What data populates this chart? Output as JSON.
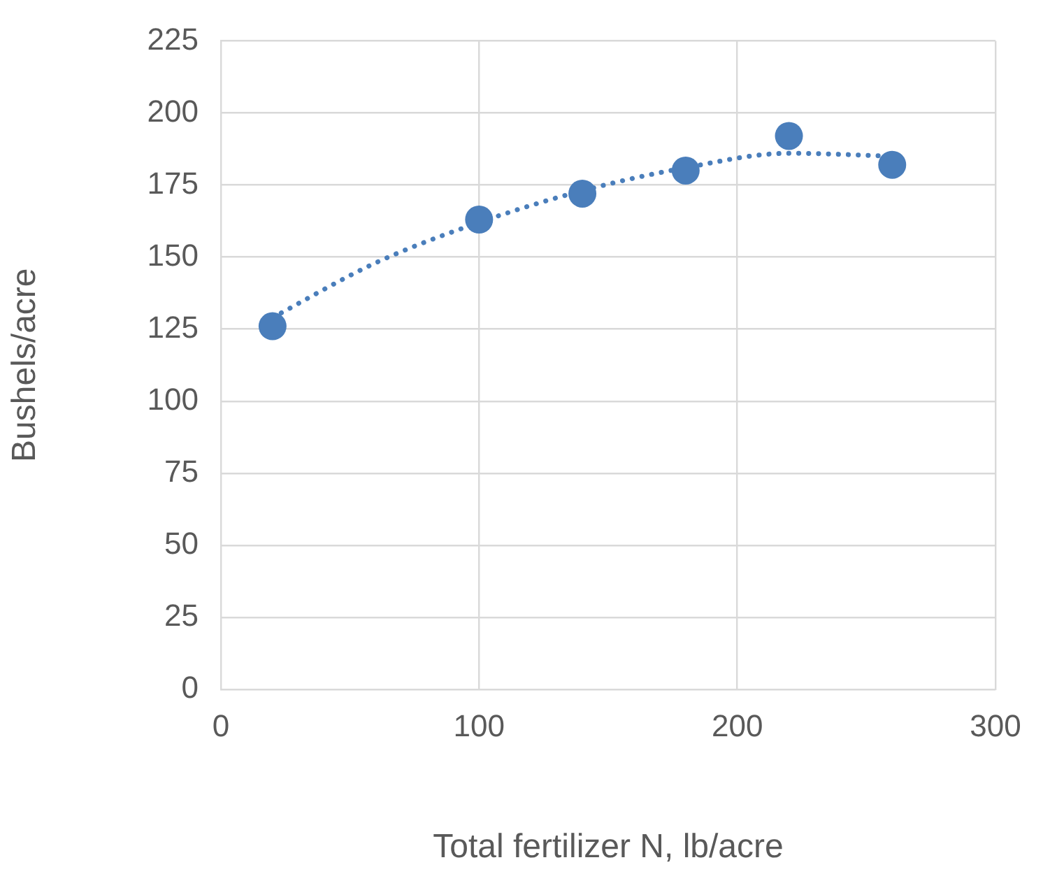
{
  "chart_data": {
    "type": "scatter",
    "xlabel": "Total fertilizer N, lb/acre",
    "ylabel": "Bushels/acre",
    "xlim": [
      0,
      300
    ],
    "xticks": [
      0,
      100,
      200,
      300
    ],
    "ylim": [
      0,
      225
    ],
    "yticks": [
      0,
      25,
      50,
      75,
      100,
      125,
      150,
      175,
      200,
      225
    ],
    "grid": true,
    "legend": false,
    "marker": "circle",
    "series": [
      {
        "color": "#4a7ebb",
        "x": [
          20,
          100,
          140,
          180,
          220,
          260
        ],
        "values": [
          126,
          163,
          172,
          180,
          192,
          182
        ]
      },
      {
        "type": "line",
        "color": "#4a7ebb",
        "line_style": "dotted",
        "marker": "none",
        "x": [
          20,
          60,
          100,
          140,
          180,
          220,
          260
        ],
        "values": [
          129,
          148,
          162,
          173,
          181,
          186,
          185
        ]
      }
    ]
  }
}
